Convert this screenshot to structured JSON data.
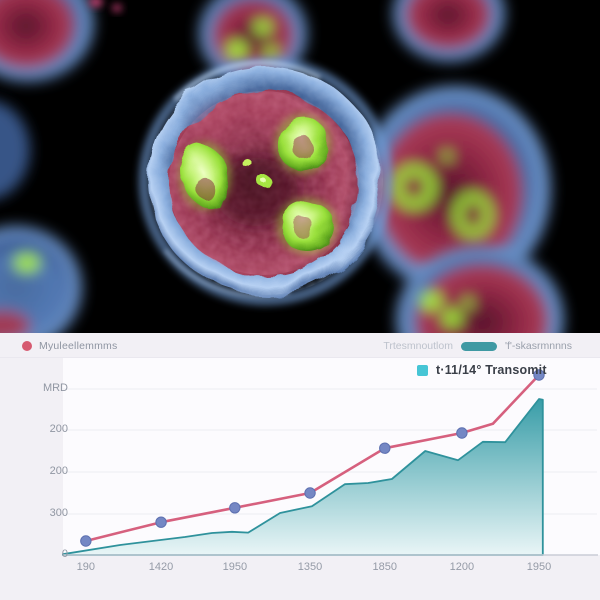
{
  "image_panel": {
    "type": "fluorescence-microscopy-cells",
    "colors": {
      "background": "#000000",
      "membrane_blue": "#8fb4e4",
      "cytoplasm_red": "#8e2a46",
      "nucleoli_green": "#9ce03a"
    }
  },
  "legend": {
    "line_label": "Myuleellemmms",
    "line_swatch_color": "#d65a70",
    "right_text_1": "Trtesmnoutlom",
    "pill_color": "#3f99a3",
    "right_text_2": "'f'-skasrmnnns",
    "area_label": "t·11/14° Transomit",
    "area_swatch_color": "#46c5d5"
  },
  "chart_data": {
    "type": "line+area",
    "title": "",
    "xlabel": "",
    "ylabel": "",
    "x_tick_labels": [
      "190",
      "1420",
      "1950",
      "1350",
      "1850",
      "1200",
      "1950"
    ],
    "y_tick_labels": [
      "MRD",
      "200",
      "200",
      "300",
      "0"
    ],
    "ylim": [
      0,
      470
    ],
    "grid": true,
    "legend_position": "top",
    "series": [
      {
        "name": "Myuleellemmms",
        "type": "line",
        "color": "#d6607e",
        "marker_color": "#7487c4",
        "marker_edge": "#5d70b0",
        "points": [
          {
            "x_pct": 4.8,
            "value": 35,
            "marker": true
          },
          {
            "x_pct": 20.6,
            "value": 82,
            "marker": true
          },
          {
            "x_pct": 36.1,
            "value": 118,
            "marker": true
          },
          {
            "x_pct": 51.9,
            "value": 155,
            "marker": true
          },
          {
            "x_pct": 67.6,
            "value": 267,
            "marker": true
          },
          {
            "x_pct": 83.8,
            "value": 305,
            "marker": true
          },
          {
            "x_pct": 90.3,
            "value": 328,
            "marker": false
          },
          {
            "x_pct": 100,
            "value": 450,
            "marker": true
          }
        ]
      },
      {
        "name": "t·11/14° Transomit",
        "type": "area",
        "stroke": "#2f929c",
        "fill_top": "#2e98a3",
        "fill_bottom": "#e8f5f6",
        "points": [
          {
            "x_pct": 0,
            "value": 2
          },
          {
            "x_pct": 12,
            "value": 25
          },
          {
            "x_pct": 25.6,
            "value": 45
          },
          {
            "x_pct": 31.3,
            "value": 55
          },
          {
            "x_pct": 35.5,
            "value": 58
          },
          {
            "x_pct": 38.9,
            "value": 56
          },
          {
            "x_pct": 45.6,
            "value": 105
          },
          {
            "x_pct": 52.3,
            "value": 122
          },
          {
            "x_pct": 59.2,
            "value": 177
          },
          {
            "x_pct": 64.1,
            "value": 180
          },
          {
            "x_pct": 69.1,
            "value": 190
          },
          {
            "x_pct": 76.1,
            "value": 260
          },
          {
            "x_pct": 83.0,
            "value": 237
          },
          {
            "x_pct": 88.2,
            "value": 283
          },
          {
            "x_pct": 92.9,
            "value": 282
          },
          {
            "x_pct": 100,
            "value": 390
          },
          {
            "x_pct": 100.8,
            "value": 388
          }
        ]
      }
    ]
  }
}
